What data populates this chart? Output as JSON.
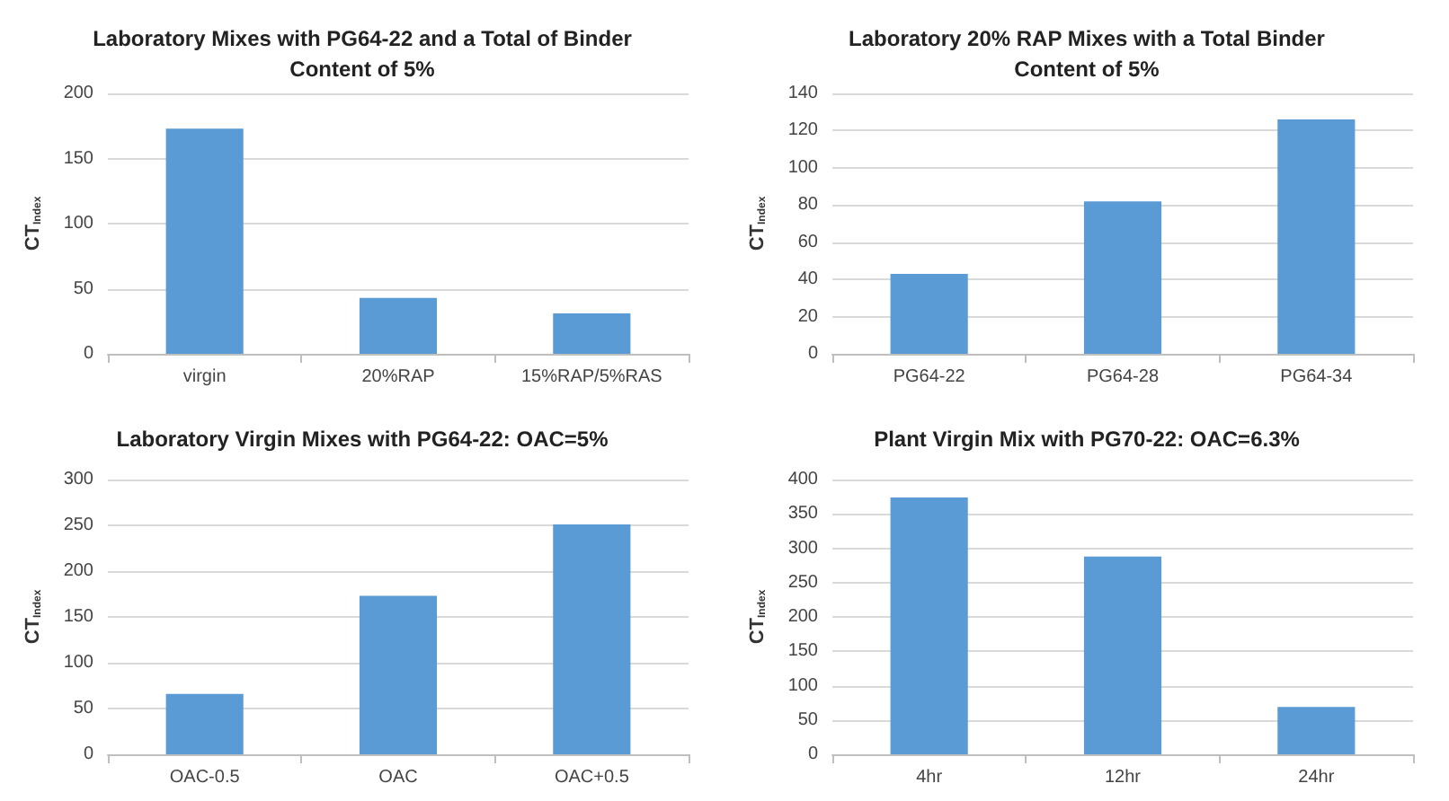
{
  "chart_data": [
    {
      "type": "bar",
      "title": "Laboratory Mixes with PG64-22 and a Total of Binder\nContent of 5%",
      "ylabel": "CT$_{Index}$",
      "categories": [
        "virgin",
        "20%RAP",
        "15%RAP/5%RAS"
      ],
      "values": [
        173,
        43,
        31
      ],
      "color": "#5b9bd5",
      "ylim": [
        0,
        200
      ],
      "yticks": [
        0,
        50,
        100,
        150,
        200
      ],
      "grid": "y"
    },
    {
      "type": "bar",
      "title": "Laboratory 20% RAP Mixes with a Total Binder\nContent of 5%",
      "ylabel": "CT$_{Index}$",
      "categories": [
        "PG64-22",
        "PG64-28",
        "PG64-34"
      ],
      "values": [
        43,
        82,
        126
      ],
      "color": "#5b9bd5",
      "ylim": [
        0,
        140
      ],
      "yticks": [
        0,
        20,
        40,
        60,
        80,
        100,
        120,
        140
      ],
      "grid": "y"
    },
    {
      "type": "bar",
      "title": "Laboratory Virgin Mixes with PG64-22: OAC=5%",
      "ylabel": "CT$_{Index}$",
      "categories": [
        "OAC-0.5",
        "OAC",
        "OAC+0.5"
      ],
      "values": [
        66,
        173,
        251
      ],
      "color": "#5b9bd5",
      "ylim": [
        0,
        300
      ],
      "yticks": [
        0,
        50,
        100,
        150,
        200,
        250,
        300
      ],
      "grid": "y"
    },
    {
      "type": "bar",
      "title": "Plant Virgin Mix with PG70-22: OAC=6.3%",
      "ylabel": "CT$_{Index}$",
      "categories": [
        "4hr",
        "12hr",
        "24hr"
      ],
      "values": [
        374,
        288,
        69
      ],
      "color": "#5b9bd5",
      "ylim": [
        0,
        400
      ],
      "yticks": [
        0,
        50,
        100,
        150,
        200,
        250,
        300,
        350,
        400
      ],
      "grid": "y"
    }
  ]
}
